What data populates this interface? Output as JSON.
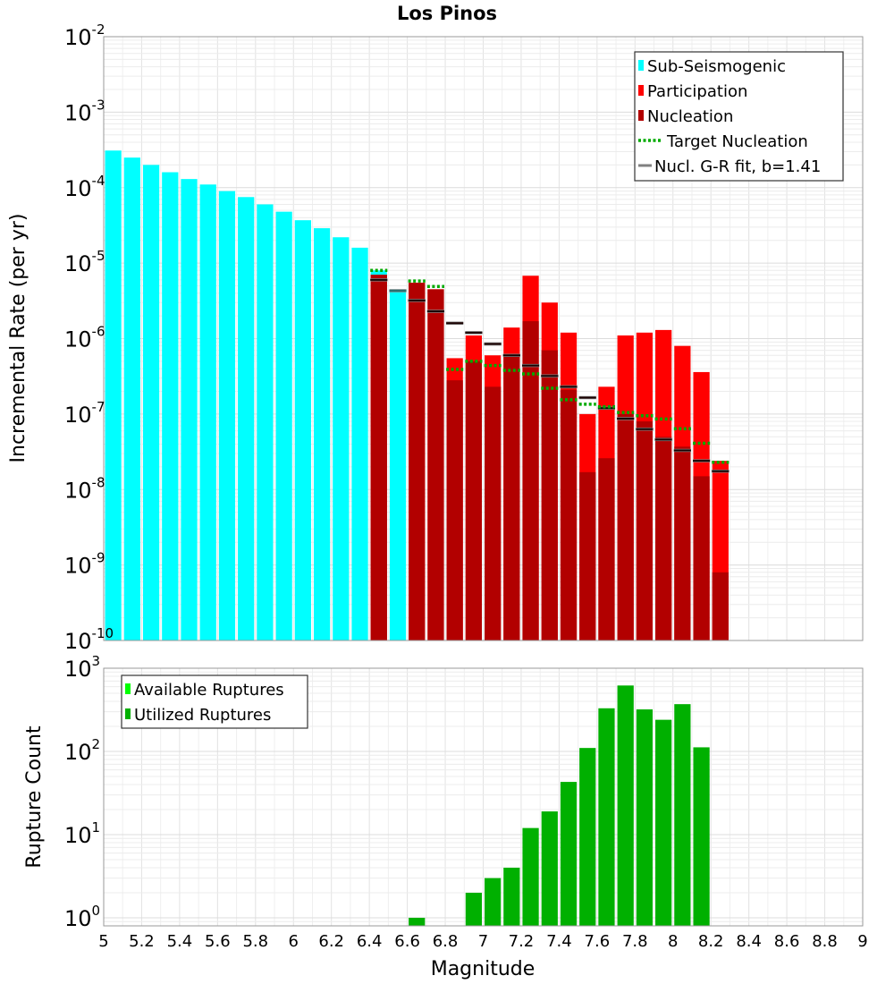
{
  "chart_data": [
    {
      "type": "bar",
      "title": "Los Pinos",
      "xlabel": "",
      "ylabel": "Incremental Rate (per yr)",
      "yscale": "log",
      "ylim": [
        1e-10,
        0.01
      ],
      "xlim": [
        5,
        9
      ],
      "y_tick_labels": [
        {
          "base": "10",
          "exp": "-10",
          "value": 1e-10
        },
        {
          "base": "10",
          "exp": "-9",
          "value": 1e-09
        },
        {
          "base": "10",
          "exp": "-8",
          "value": 1e-08
        },
        {
          "base": "10",
          "exp": "-7",
          "value": 1e-07
        },
        {
          "base": "10",
          "exp": "-6",
          "value": 1e-06
        },
        {
          "base": "10",
          "exp": "-5",
          "value": 1e-05
        },
        {
          "base": "10",
          "exp": "-4",
          "value": 0.0001
        },
        {
          "base": "10",
          "exp": "-3",
          "value": 0.001
        },
        {
          "base": "10",
          "exp": "-2",
          "value": 0.01
        }
      ],
      "legend": {
        "placement": "top-right",
        "entries": [
          {
            "label": "Sub-Seismogenic",
            "color": "#00ffff",
            "kind": "bar"
          },
          {
            "label": "Participation",
            "color": "#ff0000",
            "kind": "bar"
          },
          {
            "label": "Nucleation",
            "color": "#b20000",
            "kind": "bar"
          },
          {
            "label": "Target Nucleation",
            "color": "#00aa00",
            "kind": "dotted"
          },
          {
            "label": "Nucl. G-R fit, b=1.41",
            "color": "#808080",
            "kind": "line"
          }
        ]
      },
      "bin_width": 0.1,
      "series": [
        {
          "name": "Sub-Seismogenic",
          "color": "#00ffff",
          "x": [
            5.05,
            5.15,
            5.25,
            5.35,
            5.45,
            5.55,
            5.65,
            5.75,
            5.85,
            5.95,
            6.05,
            6.15,
            6.25,
            6.35,
            6.45,
            6.55
          ],
          "values": [
            0.00031,
            0.00025,
            0.0002,
            0.00016,
            0.00013,
            0.00011,
            9e-05,
            7.5e-05,
            6e-05,
            4.8e-05,
            3.7e-05,
            2.9e-05,
            2.2e-05,
            1.6e-05,
            8e-06,
            4.5e-06
          ]
        },
        {
          "name": "Participation",
          "color": "#ff0000",
          "x": [
            6.45,
            6.65,
            6.75,
            6.85,
            6.95,
            7.05,
            7.15,
            7.25,
            7.35,
            7.45,
            7.55,
            7.65,
            7.75,
            7.85,
            7.95,
            8.05,
            8.15,
            8.25
          ],
          "values": [
            7e-06,
            5.5e-06,
            4.5e-06,
            5.5e-07,
            1.1e-06,
            6e-07,
            1.4e-06,
            6.8e-06,
            3e-06,
            1.2e-06,
            1e-07,
            2.3e-07,
            1.1e-06,
            1.2e-06,
            1.3e-06,
            8e-07,
            3.6e-07,
            2.4e-08
          ]
        },
        {
          "name": "Nucleation",
          "color": "#b20000",
          "x": [
            6.45,
            6.65,
            6.75,
            6.85,
            6.95,
            7.05,
            7.15,
            7.25,
            7.35,
            7.45,
            7.55,
            7.65,
            7.75,
            7.85,
            7.95,
            8.05,
            8.15,
            8.25
          ],
          "values": [
            7e-06,
            5.5e-06,
            4.5e-06,
            2.8e-07,
            5e-07,
            2.3e-07,
            6e-07,
            1.7e-06,
            7e-07,
            2.1e-07,
            1.7e-08,
            2.6e-08,
            1e-07,
            8e-08,
            5e-08,
            3.7e-08,
            1.5e-08,
            8e-10
          ]
        },
        {
          "name": "Target Nucleation",
          "color": "#00aa00",
          "x": [
            6.45,
            6.65,
            6.75,
            6.85,
            6.95,
            7.05,
            7.15,
            7.25,
            7.35,
            7.45,
            7.55,
            7.65,
            7.75,
            7.85,
            7.95,
            8.05,
            8.15,
            8.25
          ],
          "values": [
            8e-06,
            5.8e-06,
            4.9e-06,
            3.9e-07,
            5e-07,
            4.4e-07,
            3.8e-07,
            3.4e-07,
            2.2e-07,
            1.55e-07,
            1.35e-07,
            1.25e-07,
            1.05e-07,
            9.5e-08,
            8.6e-08,
            6.4e-08,
            4.1e-08,
            2.3e-08
          ]
        },
        {
          "name": "Nucl. G-R fit, b=1.41",
          "color": "#808080",
          "x": [
            6.45,
            6.55,
            6.65,
            6.75,
            6.85,
            6.95,
            7.05,
            7.15,
            7.25,
            7.35,
            7.45,
            7.55,
            7.65,
            7.75,
            7.85,
            7.95,
            8.05,
            8.15,
            8.25
          ],
          "values": [
            6e-06,
            4.3e-06,
            3.2e-06,
            2.3e-06,
            1.6e-06,
            1.2e-06,
            8.5e-07,
            6e-07,
            4.4e-07,
            3.2e-07,
            2.3e-07,
            1.65e-07,
            1.2e-07,
            8.7e-08,
            6.3e-08,
            4.6e-08,
            3.3e-08,
            2.4e-08,
            1.75e-08
          ]
        }
      ]
    },
    {
      "type": "bar",
      "title": "",
      "xlabel": "Magnitude",
      "ylabel": "Rupture Count",
      "yscale": "log",
      "ylim": [
        0.8,
        1000
      ],
      "xlim": [
        5,
        9
      ],
      "x_tick_labels": [
        "5",
        "5.2",
        "5.4",
        "5.6",
        "5.8",
        "6",
        "6.2",
        "6.4",
        "6.6",
        "6.8",
        "7",
        "7.2",
        "7.4",
        "7.6",
        "7.8",
        "8",
        "8.2",
        "8.4",
        "8.6",
        "8.8",
        "9"
      ],
      "x_tick_values": [
        5,
        5.2,
        5.4,
        5.6,
        5.8,
        6,
        6.2,
        6.4,
        6.6,
        6.8,
        7,
        7.2,
        7.4,
        7.6,
        7.8,
        8,
        8.2,
        8.4,
        8.6,
        8.8,
        9
      ],
      "y_tick_labels": [
        {
          "base": "10",
          "exp": "0",
          "value": 1
        },
        {
          "base": "10",
          "exp": "1",
          "value": 10
        },
        {
          "base": "10",
          "exp": "2",
          "value": 100
        },
        {
          "base": "10",
          "exp": "3",
          "value": 1000
        }
      ],
      "legend": {
        "placement": "top-left",
        "entries": [
          {
            "label": "Available Ruptures",
            "color": "#00ff00",
            "kind": "bar"
          },
          {
            "label": "Utilized Ruptures",
            "color": "#00b000",
            "kind": "bar"
          }
        ]
      },
      "bin_width": 0.1,
      "series": [
        {
          "name": "Utilized Ruptures",
          "color": "#00b000",
          "x": [
            6.65,
            6.95,
            7.05,
            7.15,
            7.25,
            7.35,
            7.45,
            7.55,
            7.65,
            7.75,
            7.85,
            7.95,
            8.05,
            8.15
          ],
          "values": [
            1,
            2,
            3,
            4,
            12,
            19,
            43,
            110,
            330,
            620,
            320,
            240,
            370,
            112
          ]
        }
      ]
    }
  ]
}
